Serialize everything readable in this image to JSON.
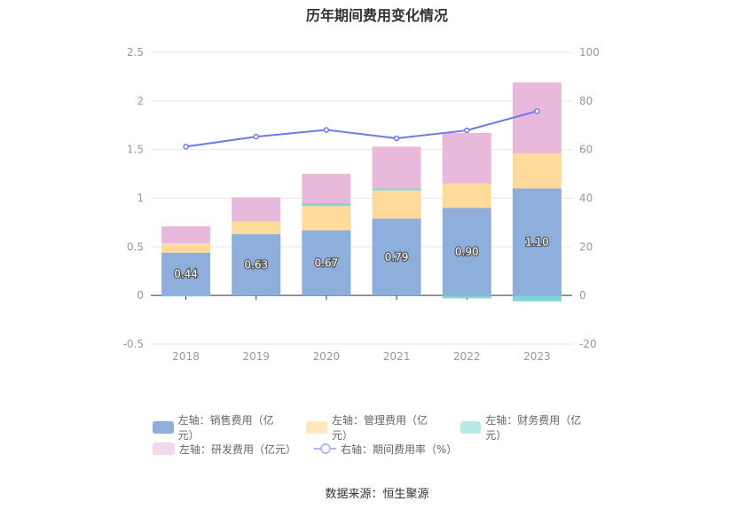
{
  "chart_data": {
    "type": "bar",
    "title": "历年期间费用变化情况",
    "categories": [
      "2018",
      "2019",
      "2020",
      "2021",
      "2022",
      "2023"
    ],
    "left_axis": {
      "ylim": [
        -0.5,
        2.5
      ],
      "ticks": [
        "-0.5",
        "0",
        "0.5",
        "1",
        "1.5",
        "2",
        "2.5"
      ]
    },
    "right_axis": {
      "ylim": [
        -20,
        100
      ],
      "ticks": [
        "-20",
        "0",
        "20",
        "40",
        "60",
        "80",
        "100"
      ]
    },
    "stacked": true,
    "grid": true,
    "legend_position": "bottom",
    "series": [
      {
        "name": "左轴：销售费用（亿元）",
        "axis": "left",
        "type": "bar",
        "color": "#8eaedb",
        "values": [
          0.44,
          0.63,
          0.67,
          0.79,
          0.9,
          1.1
        ],
        "labels": [
          "0.44",
          "0.63",
          "0.67",
          "0.79",
          "0.90",
          "1.10"
        ]
      },
      {
        "name": "左轴：管理费用（亿元）",
        "axis": "left",
        "type": "bar",
        "color": "#ffdb9b",
        "values": [
          0.1,
          0.13,
          0.25,
          0.29,
          0.25,
          0.36
        ]
      },
      {
        "name": "左轴：财务费用（亿元）",
        "axis": "left",
        "type": "bar",
        "color": "#7fd6d6",
        "values": [
          -0.01,
          0.0,
          0.03,
          0.02,
          -0.03,
          -0.06
        ]
      },
      {
        "name": "左轴：研发费用（亿元）",
        "axis": "left",
        "type": "bar",
        "color": "#e8b9da",
        "values": [
          0.17,
          0.25,
          0.3,
          0.43,
          0.52,
          0.73
        ]
      },
      {
        "name": "右轴：期间费用率（%）",
        "axis": "right",
        "type": "line",
        "color": "#6f7ae8",
        "values": [
          61.2,
          65.3,
          68.1,
          64.6,
          67.9,
          75.8
        ]
      }
    ]
  },
  "source": "数据来源：恒生聚源"
}
